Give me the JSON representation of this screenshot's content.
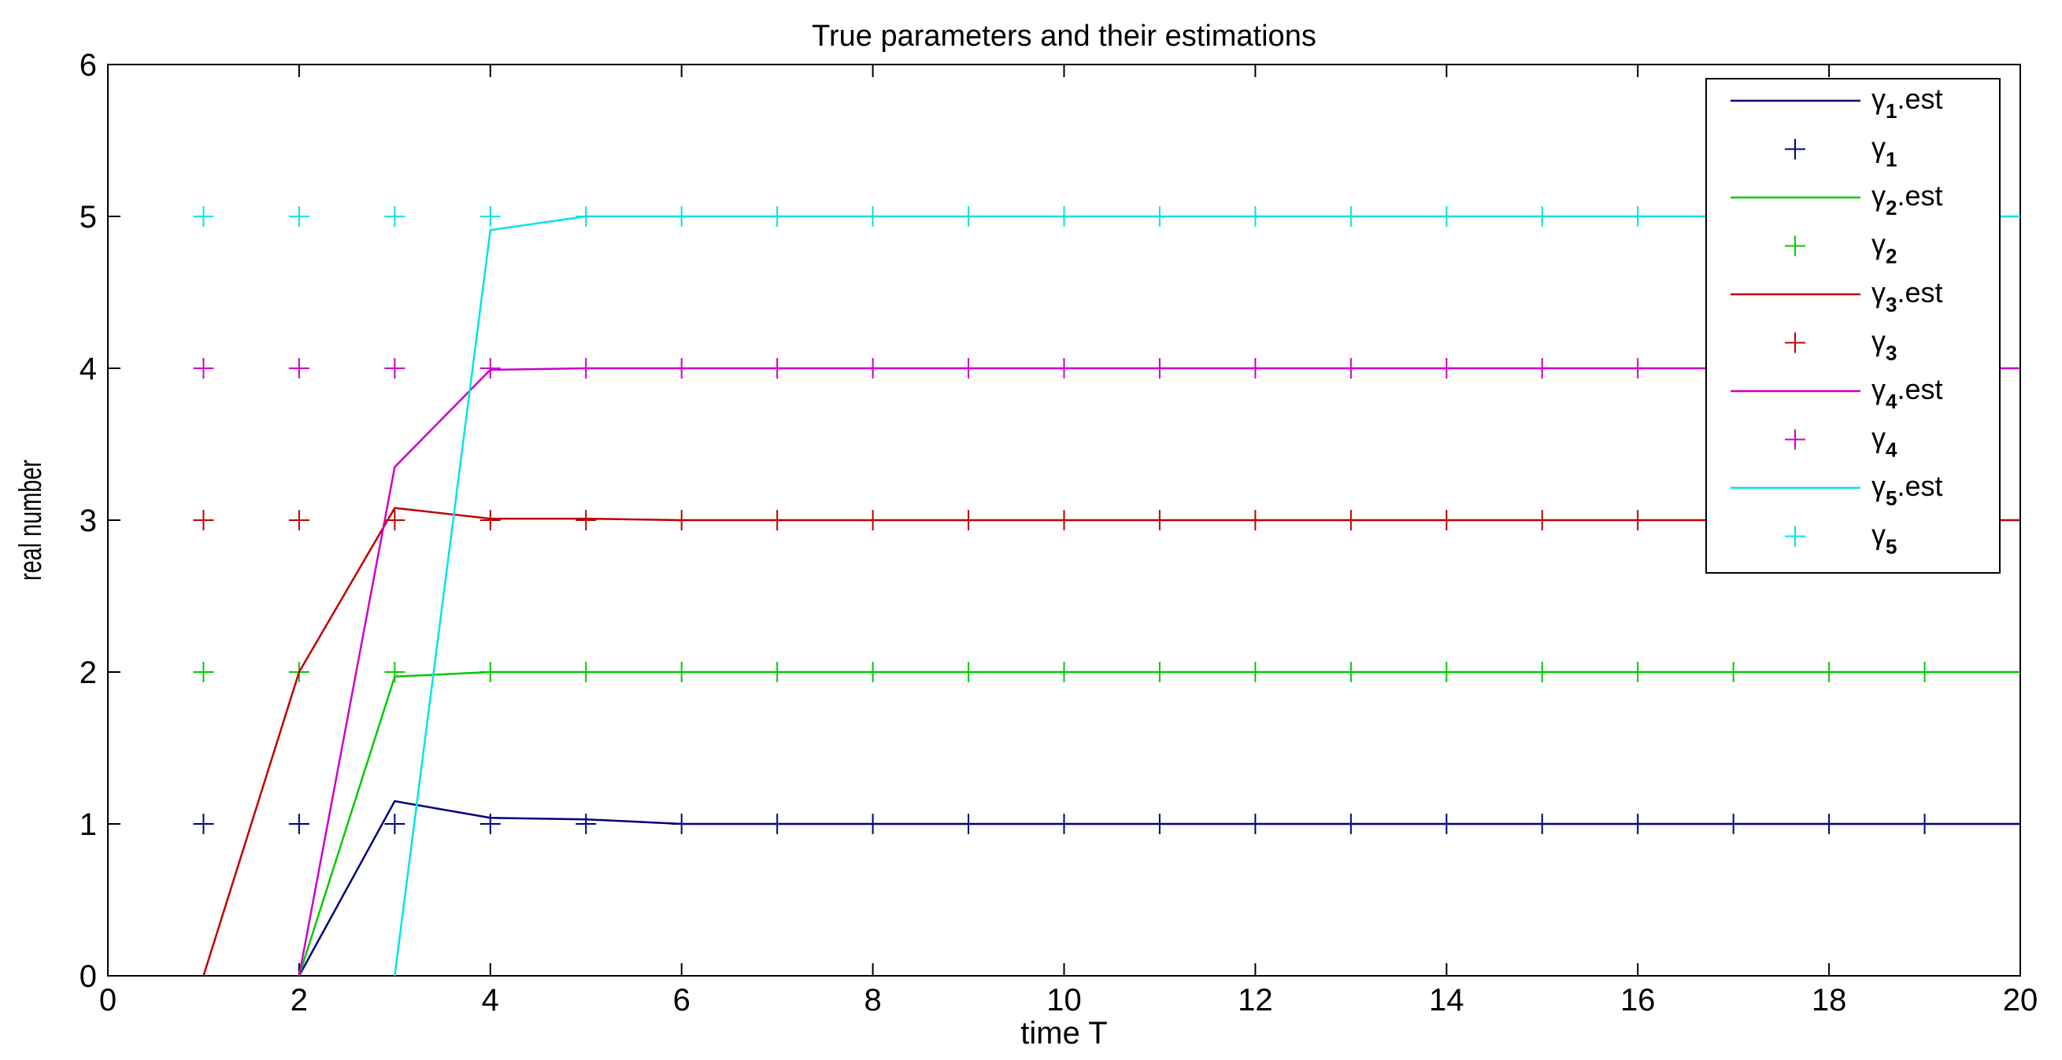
{
  "chart_data": {
    "type": "line",
    "title": "True parameters and their estimations",
    "xlabel": "time T",
    "ylabel": "real number",
    "xlim": [
      0,
      20
    ],
    "ylim": [
      0,
      6
    ],
    "xticks": [
      "0",
      "2",
      "4",
      "6",
      "8",
      "10",
      "12",
      "14",
      "16",
      "18",
      "20"
    ],
    "yticks": [
      "0",
      "1",
      "2",
      "3",
      "4",
      "5",
      "6"
    ],
    "legend_position": "top-right",
    "grid": false,
    "series": [
      {
        "name": "γ1.est",
        "symbol": "γ",
        "sub": "1",
        "suffix": ".est",
        "kind": "line",
        "color": "#00007f",
        "x": [
          2,
          3,
          4,
          5,
          6,
          7,
          8,
          9,
          10,
          11,
          12,
          13,
          14,
          15,
          16,
          17,
          18,
          19,
          20
        ],
        "y": [
          0,
          1.15,
          1.04,
          1.03,
          1.0,
          1.0,
          1.0,
          1.0,
          1.0,
          1.0,
          1.0,
          1.0,
          1.0,
          1.0,
          1.0,
          1.0,
          1.0,
          1.0,
          1.0
        ]
      },
      {
        "name": "γ1",
        "symbol": "γ",
        "sub": "1",
        "suffix": "",
        "kind": "marker",
        "color": "#00007f",
        "x": [
          1,
          2,
          3,
          4,
          5,
          6,
          7,
          8,
          9,
          10,
          11,
          12,
          13,
          14,
          15,
          16,
          17,
          18,
          19
        ],
        "y": [
          1,
          1,
          1,
          1,
          1,
          1,
          1,
          1,
          1,
          1,
          1,
          1,
          1,
          1,
          1,
          1,
          1,
          1,
          1
        ]
      },
      {
        "name": "γ2.est",
        "symbol": "γ",
        "sub": "2",
        "suffix": ".est",
        "kind": "line",
        "color": "#00cc00",
        "x": [
          2,
          3,
          4,
          5,
          6,
          7,
          8,
          9,
          10,
          11,
          12,
          13,
          14,
          15,
          16,
          17,
          18,
          19,
          20
        ],
        "y": [
          0,
          1.97,
          2.0,
          2.0,
          2.0,
          2.0,
          2.0,
          2.0,
          2.0,
          2.0,
          2.0,
          2.0,
          2.0,
          2.0,
          2.0,
          2.0,
          2.0,
          2.0,
          2.0
        ]
      },
      {
        "name": "γ2",
        "symbol": "γ",
        "sub": "2",
        "suffix": "",
        "kind": "marker",
        "color": "#00cc00",
        "x": [
          1,
          2,
          3,
          4,
          5,
          6,
          7,
          8,
          9,
          10,
          11,
          12,
          13,
          14,
          15,
          16,
          17,
          18,
          19
        ],
        "y": [
          2,
          2,
          2,
          2,
          2,
          2,
          2,
          2,
          2,
          2,
          2,
          2,
          2,
          2,
          2,
          2,
          2,
          2,
          2
        ]
      },
      {
        "name": "γ3.est",
        "symbol": "γ",
        "sub": "3",
        "suffix": ".est",
        "kind": "line",
        "color": "#bf0000",
        "x": [
          1,
          2,
          3,
          4,
          5,
          6,
          7,
          8,
          9,
          10,
          11,
          12,
          13,
          14,
          15,
          16,
          17,
          18,
          19,
          20
        ],
        "y": [
          0,
          2.0,
          3.08,
          3.01,
          3.01,
          3.0,
          3.0,
          3.0,
          3.0,
          3.0,
          3.0,
          3.0,
          3.0,
          3.0,
          3.0,
          3.0,
          3.0,
          3.0,
          3.0,
          3.0
        ]
      },
      {
        "name": "γ3",
        "symbol": "γ",
        "sub": "3",
        "suffix": "",
        "kind": "marker",
        "color": "#bf0000",
        "x": [
          1,
          2,
          3,
          4,
          5,
          6,
          7,
          8,
          9,
          10,
          11,
          12,
          13,
          14,
          15,
          16,
          17,
          18,
          19
        ],
        "y": [
          3,
          3,
          3,
          3,
          3,
          3,
          3,
          3,
          3,
          3,
          3,
          3,
          3,
          3,
          3,
          3,
          3,
          3,
          3
        ]
      },
      {
        "name": "γ4.est",
        "symbol": "γ",
        "sub": "4",
        "suffix": ".est",
        "kind": "line",
        "color": "#cc00cc",
        "x": [
          2,
          3,
          4,
          5,
          6,
          7,
          8,
          9,
          10,
          11,
          12,
          13,
          14,
          15,
          16,
          17,
          18,
          19,
          20
        ],
        "y": [
          0,
          3.35,
          3.99,
          4.0,
          4.0,
          4.0,
          4.0,
          4.0,
          4.0,
          4.0,
          4.0,
          4.0,
          4.0,
          4.0,
          4.0,
          4.0,
          4.0,
          4.0,
          4.0
        ]
      },
      {
        "name": "γ4",
        "symbol": "γ",
        "sub": "4",
        "suffix": "",
        "kind": "marker",
        "color": "#cc00cc",
        "x": [
          1,
          2,
          3,
          4,
          5,
          6,
          7,
          8,
          9,
          10,
          11,
          12,
          13,
          14,
          15,
          16,
          17,
          18,
          19
        ],
        "y": [
          4,
          4,
          4,
          4,
          4,
          4,
          4,
          4,
          4,
          4,
          4,
          4,
          4,
          4,
          4,
          4,
          4,
          4,
          4
        ]
      },
      {
        "name": "γ5.est",
        "symbol": "γ",
        "sub": "5",
        "suffix": ".est",
        "kind": "line",
        "color": "#00e5e5",
        "x": [
          3,
          4,
          5,
          6,
          7,
          8,
          9,
          10,
          11,
          12,
          13,
          14,
          15,
          16,
          17,
          18,
          19,
          20
        ],
        "y": [
          0,
          4.91,
          5.0,
          5.0,
          5.0,
          5.0,
          5.0,
          5.0,
          5.0,
          5.0,
          5.0,
          5.0,
          5.0,
          5.0,
          5.0,
          5.0,
          5.0,
          5.0
        ]
      },
      {
        "name": "γ5",
        "symbol": "γ",
        "sub": "5",
        "suffix": "",
        "kind": "marker",
        "color": "#00e5e5",
        "x": [
          1,
          2,
          3,
          4,
          5,
          6,
          7,
          8,
          9,
          10,
          11,
          12,
          13,
          14,
          15,
          16,
          17,
          18,
          19
        ],
        "y": [
          5,
          5,
          5,
          5,
          5,
          5,
          5,
          5,
          5,
          5,
          5,
          5,
          5,
          5,
          5,
          5,
          5,
          5,
          5
        ]
      }
    ]
  }
}
